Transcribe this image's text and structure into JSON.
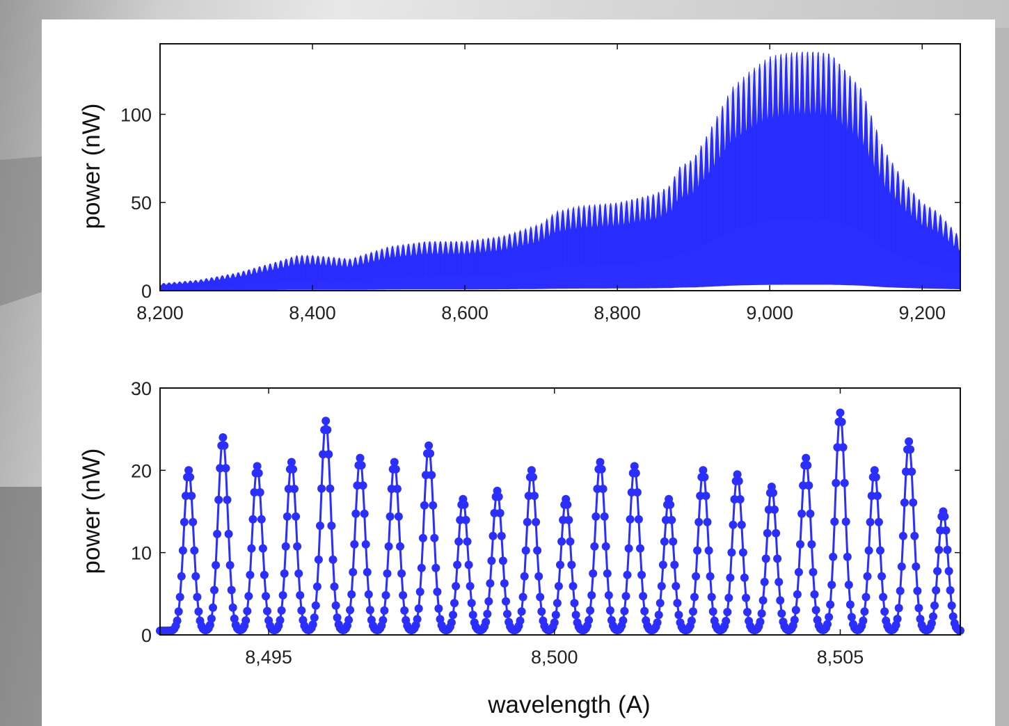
{
  "colors": {
    "series": "#2a2eff",
    "axis": "#111111",
    "panel_background": "#ffffff"
  },
  "chart_data": [
    {
      "type": "area",
      "title": "",
      "xlabel": "",
      "ylabel": "power (nW)",
      "xlim": [
        8200,
        9250
      ],
      "ylim": [
        0,
        140
      ],
      "x_ticks": [
        8200,
        8400,
        8600,
        8800,
        9000,
        9200
      ],
      "x_tick_labels": [
        "8,200",
        "8,400",
        "8,600",
        "8,800",
        "9,000",
        "9,200"
      ],
      "y_ticks": [
        0,
        50,
        100
      ],
      "y_tick_labels": [
        "0",
        "50",
        "100"
      ],
      "grid": false,
      "legend": "none",
      "series": [
        {
          "style": "dense oscillating fringes, sampled upper envelope",
          "x": [
            8200,
            8250,
            8300,
            8350,
            8380,
            8400,
            8450,
            8500,
            8550,
            8600,
            8650,
            8700,
            8720,
            8750,
            8800,
            8850,
            8870,
            8880,
            8900,
            8920,
            8950,
            8975,
            9000,
            9020,
            9040,
            9060,
            9080,
            9100,
            9120,
            9150,
            9180,
            9200,
            9220,
            9250
          ],
          "values": [
            4,
            6,
            10,
            16,
            20,
            20,
            18,
            25,
            28,
            28,
            31,
            38,
            45,
            48,
            50,
            55,
            60,
            70,
            75,
            90,
            115,
            125,
            133,
            135,
            136,
            136,
            135,
            125,
            115,
            80,
            60,
            50,
            45,
            30
          ]
        }
      ]
    },
    {
      "type": "line",
      "title": "",
      "xlabel": "wavelength (A)",
      "ylabel": "power (nW)",
      "xlim": [
        8493.1,
        8507.1
      ],
      "ylim": [
        0,
        30
      ],
      "x_ticks": [
        8495,
        8500,
        8505
      ],
      "x_tick_labels": [
        "8,495",
        "8,500",
        "8,505"
      ],
      "y_ticks": [
        0,
        10,
        20,
        30
      ],
      "y_tick_labels": [
        "0",
        "10",
        "20",
        "30"
      ],
      "grid": false,
      "legend": "none",
      "marker": "circle",
      "series": [
        {
          "style": "line with circle markers, sampled peaks",
          "peak_x": [
            8493.6,
            8494.2,
            8494.8,
            8495.4,
            8496.0,
            8496.6,
            8497.2,
            8497.8,
            8498.4,
            8499.0,
            8499.6,
            8500.2,
            8500.8,
            8501.4,
            8502.0,
            8502.6,
            8503.2,
            8503.8,
            8504.4,
            8505.0,
            8505.6,
            8506.2,
            8506.8
          ],
          "peak_values": [
            20,
            24,
            20.5,
            21,
            26,
            21.5,
            21,
            23,
            16.5,
            17.5,
            20,
            16.5,
            21,
            20.5,
            16.5,
            20,
            19.5,
            18,
            21.5,
            27,
            20,
            23.5,
            15
          ],
          "baseline": 0.5
        }
      ]
    }
  ]
}
